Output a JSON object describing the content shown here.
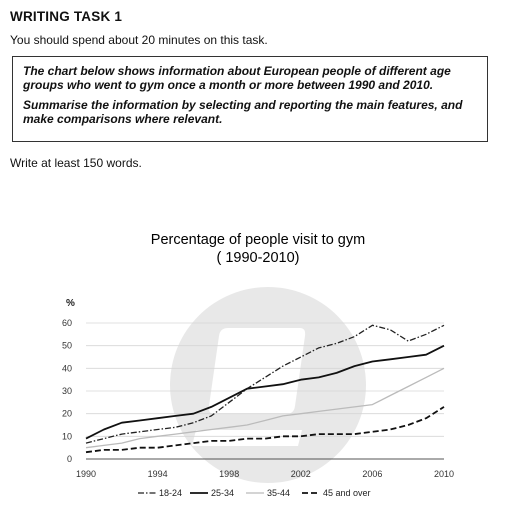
{
  "page": {
    "heading": "WRITING TASK 1",
    "instruction": "You should spend about 20 minutes on this task.",
    "task_paragraph_1": "The chart below shows information about European people of different age groups who went to gym once a month or more between 1990 and 2010.",
    "task_paragraph_2": "Summarise the information by selecting and reporting the main features, and make comparisons where relevant.",
    "word_count_note": "Write at least 150 words."
  },
  "chart_data": {
    "type": "line",
    "title_line1": "Percentage of people visit to gym",
    "title_line2": "( 1990-2010)",
    "ylabel": "%",
    "xlabel": "",
    "xlim": [
      1990,
      2010
    ],
    "ylim": [
      0,
      60
    ],
    "x_ticks": [
      1990,
      1994,
      1998,
      2002,
      2006,
      2010
    ],
    "y_ticks": [
      0,
      10,
      20,
      30,
      40,
      50,
      60
    ],
    "grid": "horizontal",
    "legend_position": "bottom",
    "series": [
      {
        "name": "18-24",
        "color": "#222222",
        "style": "dashdot",
        "points": [
          [
            1990,
            7
          ],
          [
            1991,
            9
          ],
          [
            1992,
            11
          ],
          [
            1993,
            12
          ],
          [
            1994,
            13
          ],
          [
            1995,
            14
          ],
          [
            1996,
            16
          ],
          [
            1997,
            19
          ],
          [
            1998,
            25
          ],
          [
            1999,
            31
          ],
          [
            2000,
            36
          ],
          [
            2001,
            41
          ],
          [
            2002,
            45
          ],
          [
            2003,
            49
          ],
          [
            2004,
            51
          ],
          [
            2005,
            54
          ],
          [
            2006,
            59
          ],
          [
            2007,
            57
          ],
          [
            2008,
            52
          ],
          [
            2009,
            55
          ],
          [
            2010,
            59
          ]
        ]
      },
      {
        "name": "25-34",
        "color": "#111111",
        "style": "solid",
        "points": [
          [
            1990,
            9
          ],
          [
            1991,
            13
          ],
          [
            1992,
            16
          ],
          [
            1993,
            17
          ],
          [
            1994,
            18
          ],
          [
            1995,
            19
          ],
          [
            1996,
            20
          ],
          [
            1997,
            23
          ],
          [
            1998,
            27
          ],
          [
            1999,
            31
          ],
          [
            2000,
            32
          ],
          [
            2001,
            33
          ],
          [
            2002,
            35
          ],
          [
            2003,
            36
          ],
          [
            2004,
            38
          ],
          [
            2005,
            41
          ],
          [
            2006,
            43
          ],
          [
            2007,
            44
          ],
          [
            2008,
            45
          ],
          [
            2009,
            46
          ],
          [
            2010,
            50
          ]
        ]
      },
      {
        "name": "35-44",
        "color": "#bbbbbb",
        "style": "solid",
        "points": [
          [
            1990,
            5
          ],
          [
            1991,
            6
          ],
          [
            1992,
            7
          ],
          [
            1993,
            9
          ],
          [
            1994,
            10
          ],
          [
            1995,
            11
          ],
          [
            1996,
            12
          ],
          [
            1997,
            13
          ],
          [
            1998,
            14
          ],
          [
            1999,
            15
          ],
          [
            2000,
            17
          ],
          [
            2001,
            19
          ],
          [
            2002,
            20
          ],
          [
            2003,
            21
          ],
          [
            2004,
            22
          ],
          [
            2005,
            23
          ],
          [
            2006,
            24
          ],
          [
            2007,
            28
          ],
          [
            2008,
            32
          ],
          [
            2009,
            36
          ],
          [
            2010,
            40
          ]
        ]
      },
      {
        "name": "45 and over",
        "color": "#111111",
        "style": "dashed",
        "points": [
          [
            1990,
            3
          ],
          [
            1991,
            4
          ],
          [
            1992,
            4
          ],
          [
            1993,
            5
          ],
          [
            1994,
            5
          ],
          [
            1995,
            6
          ],
          [
            1996,
            7
          ],
          [
            1997,
            8
          ],
          [
            1998,
            8
          ],
          [
            1999,
            9
          ],
          [
            2000,
            9
          ],
          [
            2001,
            10
          ],
          [
            2002,
            10
          ],
          [
            2003,
            11
          ],
          [
            2004,
            11
          ],
          [
            2005,
            11
          ],
          [
            2006,
            12
          ],
          [
            2007,
            13
          ],
          [
            2008,
            15
          ],
          [
            2009,
            18
          ],
          [
            2010,
            23
          ]
        ]
      }
    ]
  }
}
